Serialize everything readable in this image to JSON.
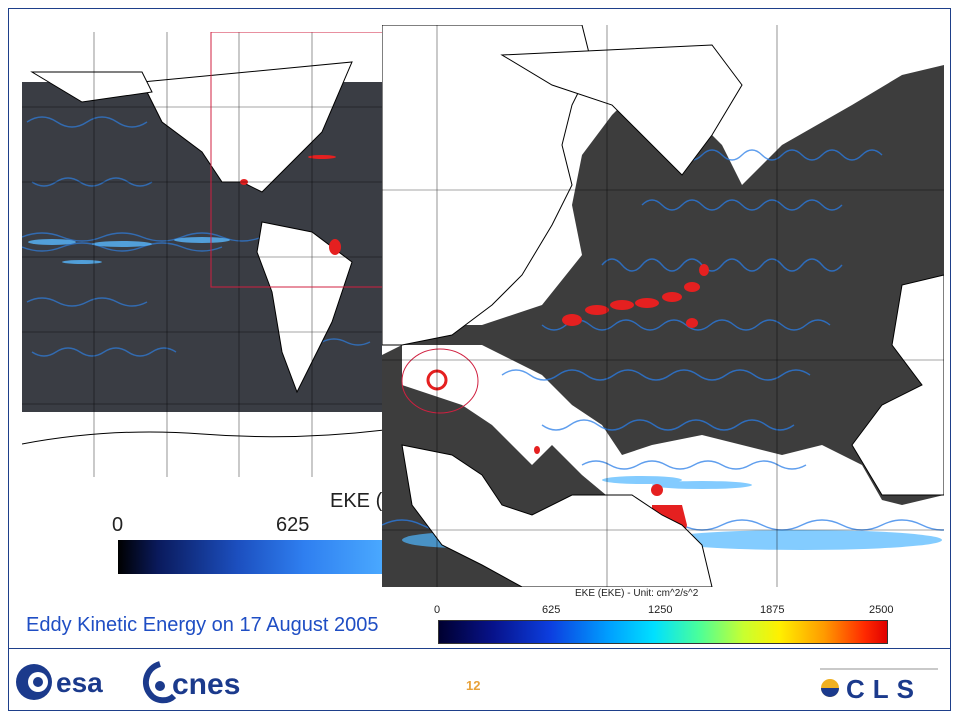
{
  "world_panel": {
    "eke_label": "EKE (",
    "colorbar_ticks": [
      "0",
      "625"
    ]
  },
  "atlantic_panel": {
    "colorbar_title": "EKE (EKE) - Unit: cm^2/s^2",
    "colorbar_ticks": [
      "0",
      "625",
      "1250",
      "1875",
      "2500"
    ]
  },
  "caption": "Eddy Kinetic Energy on 17 August 2005",
  "page_number": "12",
  "logos": {
    "esa": "esa",
    "cnes": "cnes",
    "cls": "CLS"
  },
  "colors": {
    "frame": "#1e3f8a",
    "caption": "#1f4ec4",
    "page_number": "#e8a23a",
    "ocean_background": "#3d3d3d",
    "eddy_high": "#e00000"
  }
}
